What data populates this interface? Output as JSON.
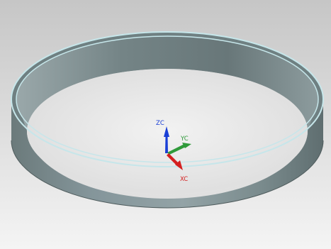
{
  "viewport": {
    "background_top": "#c6c6c6",
    "background_bottom": "#f4f4f4"
  },
  "model": {
    "shape": "ring",
    "wall_color": "#6f7f80",
    "wall_highlight": "#9aaaab",
    "rim_color": "#c6e6ea",
    "floor_color": "#e9e9e9"
  },
  "triad": {
    "zc_label": "ZC",
    "yc_label": "YC",
    "xc_label": "XC",
    "zc_color": "#1a3fd6",
    "yc_color": "#2f9a3a",
    "xc_color": "#d42020"
  }
}
